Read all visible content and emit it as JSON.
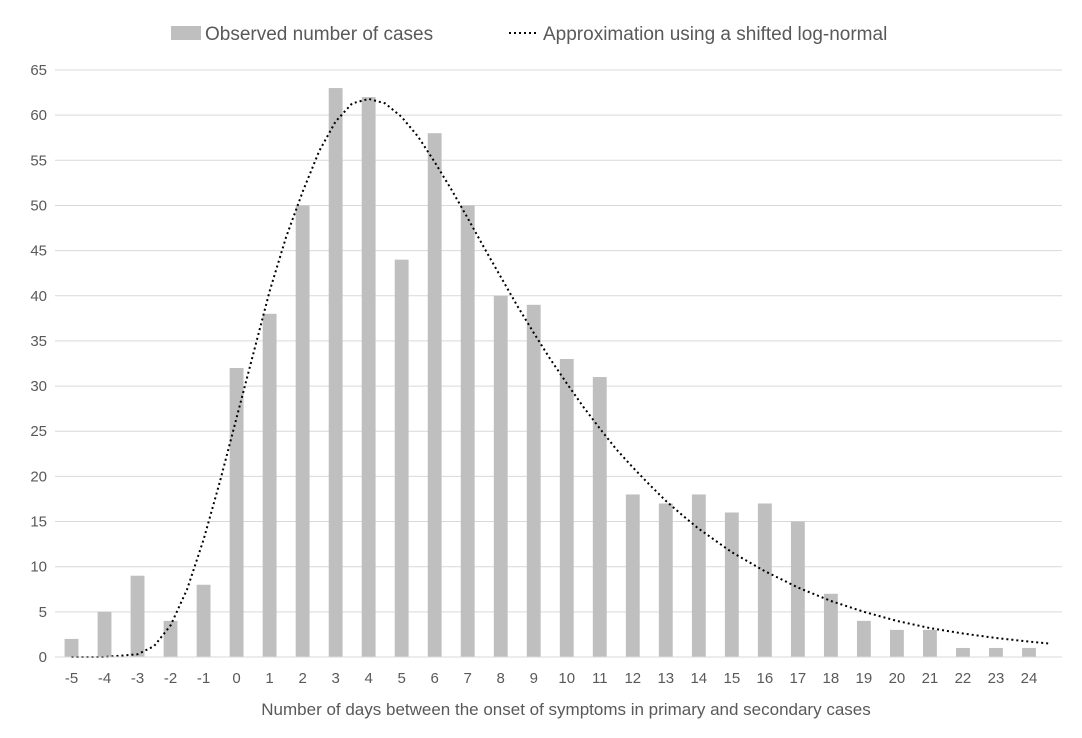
{
  "chart_data": {
    "type": "bar",
    "title": "",
    "xlabel": "Number of days between the onset of symptoms in primary and secondary cases",
    "ylabel": "",
    "ylim": [
      0,
      65
    ],
    "ytick_step": 5,
    "yticks": [
      "0",
      "5",
      "10",
      "15",
      "20",
      "25",
      "30",
      "35",
      "40",
      "45",
      "50",
      "55",
      "60",
      "65"
    ],
    "grid": true,
    "legend_position": "top",
    "categories": [
      "-5",
      "-4",
      "-3",
      "-2",
      "-1",
      "0",
      "1",
      "2",
      "3",
      "4",
      "5",
      "6",
      "7",
      "8",
      "9",
      "10",
      "11",
      "12",
      "13",
      "14",
      "15",
      "16",
      "17",
      "18",
      "19",
      "20",
      "21",
      "22",
      "23",
      "24"
    ],
    "series": [
      {
        "name": "Observed number of cases",
        "type": "bar",
        "color": "#bfbfbf",
        "values": [
          2,
          5,
          9,
          4,
          8,
          32,
          38,
          50,
          63,
          62,
          44,
          58,
          50,
          40,
          39,
          33,
          31,
          18,
          17,
          18,
          16,
          17,
          15,
          7,
          4,
          3,
          3,
          1,
          1,
          1
        ]
      },
      {
        "name": "Approximation using a shifted log-normal",
        "type": "line",
        "style": "dotted",
        "color": "#000000",
        "x": [
          -5,
          -4,
          -3,
          -2.5,
          -2,
          -1.5,
          -1,
          -0.5,
          0,
          0.5,
          1,
          1.5,
          2,
          2.5,
          3,
          3.5,
          4,
          4.5,
          5,
          5.5,
          6,
          6.5,
          7,
          7.5,
          8,
          8.5,
          9,
          9.5,
          10,
          10.5,
          11,
          11.5,
          12,
          12.5,
          13,
          13.5,
          14,
          15,
          16,
          17,
          18,
          19,
          20,
          21,
          22,
          23,
          24,
          24.6
        ],
        "values": [
          0,
          0,
          0.3,
          1.2,
          3.5,
          7.5,
          13,
          19.5,
          26.5,
          33.5,
          40.5,
          46.5,
          51.5,
          56,
          59.3,
          61.3,
          61.8,
          61.3,
          59.8,
          57.6,
          54.8,
          51.8,
          48.6,
          45.3,
          42.1,
          38.9,
          35.9,
          33,
          30.3,
          27.7,
          25.3,
          23,
          21,
          19.1,
          17.3,
          15.7,
          14.2,
          11.6,
          9.5,
          7.7,
          6.2,
          5,
          4,
          3.2,
          2.6,
          2.1,
          1.7,
          1.5
        ]
      }
    ]
  }
}
